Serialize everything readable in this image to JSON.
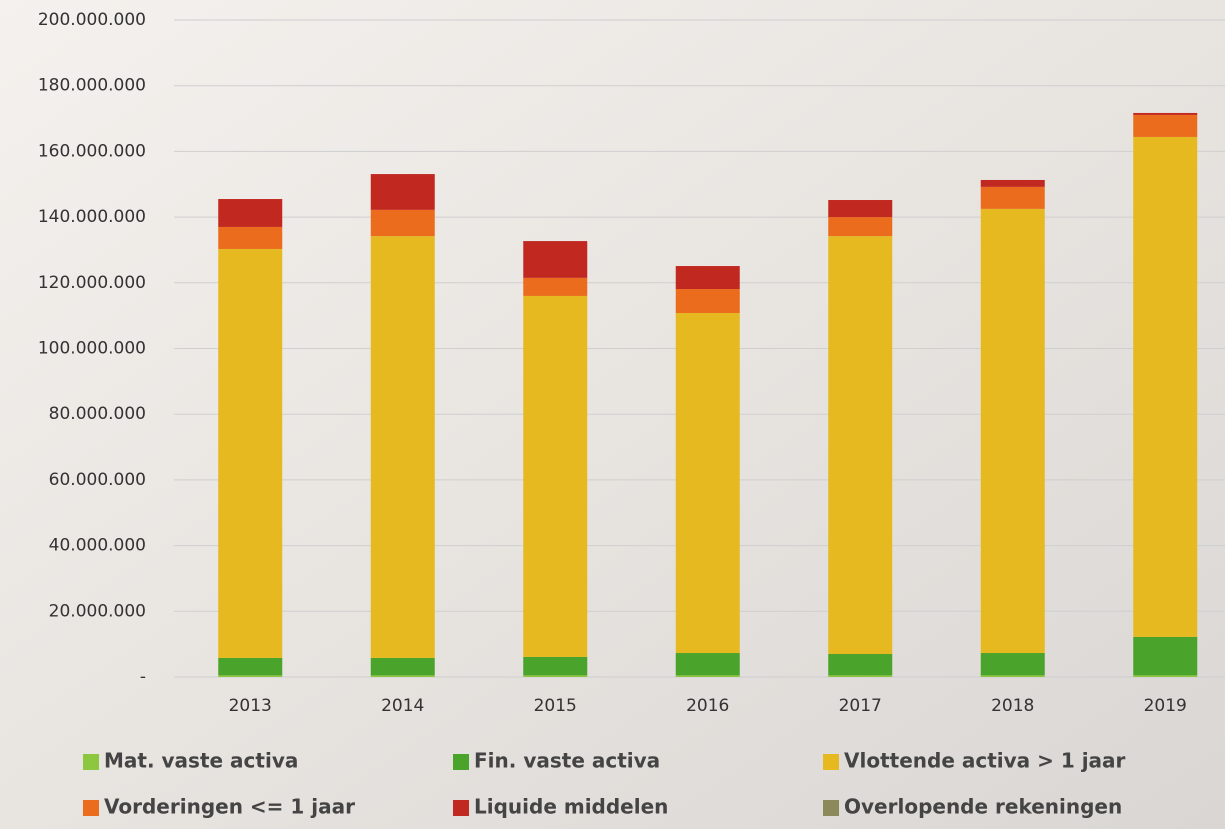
{
  "chart_data": {
    "type": "stacked-bar",
    "categories": [
      "2013",
      "2014",
      "2015",
      "2016",
      "2017",
      "2018",
      "2019"
    ],
    "series": [
      {
        "name": "Mat. vaste activa",
        "color": "#8dc63f",
        "values": [
          500000,
          500000,
          500000,
          500000,
          500000,
          500000,
          500000
        ]
      },
      {
        "name": "Fin. vaste activa",
        "color": "#4aa32b",
        "values": [
          5300000,
          5300000,
          5600000,
          6800000,
          6500000,
          6800000,
          11700000
        ]
      },
      {
        "name": "Vlottende activa > 1 jaar",
        "color": "#e6b921",
        "values": [
          124500000,
          128400000,
          109900000,
          103500000,
          127200000,
          135200000,
          152200000
        ]
      },
      {
        "name": "Vorderingen <= 1 jaar",
        "color": "#ea6c1c",
        "values": [
          6700000,
          8000000,
          5500000,
          7300000,
          5800000,
          6700000,
          6700000
        ]
      },
      {
        "name": "Liquide middelen",
        "color": "#c1281f",
        "values": [
          8500000,
          10900000,
          11200000,
          7000000,
          5200000,
          2100000,
          600000
        ]
      },
      {
        "name": "Overlopende rekeningen",
        "color": "#8c8a5a",
        "values": [
          0,
          0,
          0,
          0,
          0,
          0,
          0
        ]
      }
    ],
    "ylim": [
      0,
      200000000
    ],
    "yticks": [
      {
        "value": 0,
        "label": "-"
      },
      {
        "value": 20000000,
        "label": "20.000.000"
      },
      {
        "value": 40000000,
        "label": "40.000.000"
      },
      {
        "value": 60000000,
        "label": "60.000.000"
      },
      {
        "value": 80000000,
        "label": "80.000.000"
      },
      {
        "value": 100000000,
        "label": "100.000.000"
      },
      {
        "value": 120000000,
        "label": "120.000.000"
      },
      {
        "value": 140000000,
        "label": "140.000.000"
      },
      {
        "value": 160000000,
        "label": "160.000.000"
      },
      {
        "value": 180000000,
        "label": "180.000.000"
      },
      {
        "value": 200000000,
        "label": "200.000.000"
      }
    ],
    "grid": true
  }
}
